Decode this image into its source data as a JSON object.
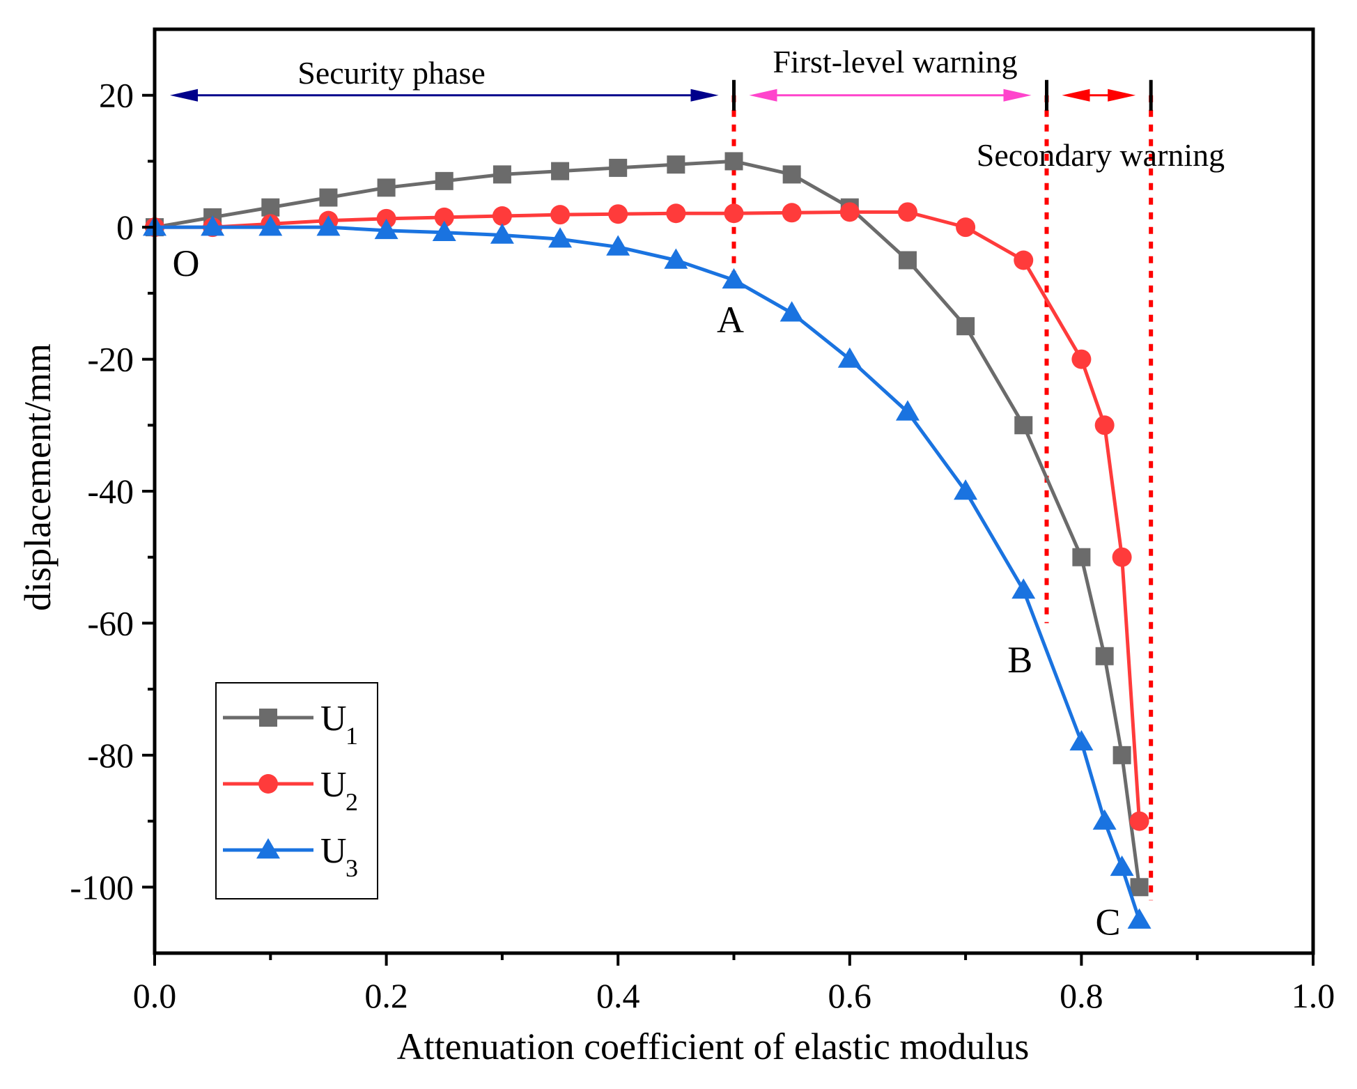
{
  "chart_data": {
    "type": "line",
    "title": "",
    "xlabel": "Attenuation coefficient of elastic modulus",
    "ylabel": "displacement/mm",
    "xlim": [
      0.0,
      1.0
    ],
    "ylim": [
      -110,
      30
    ],
    "xticks": [
      0.0,
      0.2,
      0.4,
      0.6,
      0.8,
      1.0
    ],
    "xtick_labels": [
      "0.0",
      "0.2",
      "0.4",
      "0.6",
      "0.8",
      "1.0"
    ],
    "yticks": [
      20,
      0,
      -20,
      -40,
      -60,
      -80,
      -100
    ],
    "ytick_labels": [
      "20",
      "0",
      "-20",
      "-40",
      "-60",
      "-80",
      "-100"
    ],
    "grid": false,
    "legend_position": "bottom-left",
    "series": [
      {
        "name": "U",
        "subscript": "1",
        "color": "#6b6b6b",
        "marker": "square",
        "x": [
          0.0,
          0.05,
          0.1,
          0.15,
          0.2,
          0.25,
          0.3,
          0.35,
          0.4,
          0.45,
          0.5,
          0.55,
          0.6,
          0.65,
          0.7,
          0.75,
          0.8,
          0.82,
          0.835,
          0.85
        ],
        "y": [
          0,
          1.5,
          3,
          4.5,
          6,
          7,
          8,
          8.5,
          9,
          9.5,
          10,
          8,
          3,
          -5,
          -15,
          -30,
          -50,
          -65,
          -80,
          -100
        ]
      },
      {
        "name": "U",
        "subscript": "2",
        "color": "#ff3b3b",
        "marker": "circle",
        "x": [
          0.0,
          0.05,
          0.1,
          0.15,
          0.2,
          0.25,
          0.3,
          0.35,
          0.4,
          0.45,
          0.5,
          0.55,
          0.6,
          0.65,
          0.7,
          0.75,
          0.8,
          0.82,
          0.835,
          0.85
        ],
        "y": [
          0,
          0,
          0.5,
          1,
          1.3,
          1.5,
          1.7,
          1.9,
          2,
          2.1,
          2.1,
          2.2,
          2.3,
          2.3,
          0,
          -5,
          -20,
          -30,
          -50,
          -90
        ]
      },
      {
        "name": "U",
        "subscript": "3",
        "color": "#1a73e0",
        "marker": "triangle",
        "x": [
          0.0,
          0.05,
          0.1,
          0.15,
          0.2,
          0.25,
          0.3,
          0.35,
          0.4,
          0.45,
          0.5,
          0.55,
          0.6,
          0.65,
          0.7,
          0.75,
          0.8,
          0.82,
          0.835,
          0.85
        ],
        "y": [
          0,
          0,
          0,
          0,
          -0.5,
          -0.8,
          -1.2,
          -1.8,
          -3,
          -5,
          -8,
          -13,
          -20,
          -28,
          -40,
          -55,
          -78,
          -90,
          -97,
          -105
        ]
      }
    ],
    "phases": [
      {
        "label": "Security phase",
        "x_start": 0.0,
        "x_end": 0.5,
        "color": "#00008b"
      },
      {
        "label": "First-level warning",
        "x_start": 0.5,
        "x_end": 0.77,
        "color": "#ff44cc"
      },
      {
        "label": "Secondary warning",
        "x_start": 0.77,
        "x_end": 0.86,
        "color": "#ff0000"
      }
    ],
    "phase_arrow_y": 20,
    "warning_lines": [
      {
        "x": 0.5,
        "y_top": 20,
        "y_bottom": -8
      },
      {
        "x": 0.77,
        "y_top": 20,
        "y_bottom": -60
      },
      {
        "x": 0.86,
        "y_top": 20,
        "y_bottom": -102
      }
    ],
    "warning_line_color": "#ff0000",
    "annotations": [
      {
        "text": "O",
        "x": 0.0,
        "y": 0
      },
      {
        "text": "A",
        "x": 0.5,
        "y": -8
      },
      {
        "text": "B",
        "x": 0.75,
        "y": -55
      },
      {
        "text": "C",
        "x": 0.85,
        "y": -100
      }
    ]
  }
}
